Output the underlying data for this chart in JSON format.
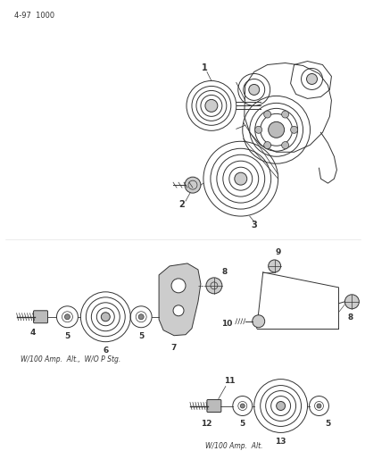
{
  "page_id": "4-97  1000",
  "background_color": "#ffffff",
  "line_color": "#333333",
  "figsize": [
    4.1,
    5.33
  ],
  "dpi": 100,
  "label1": "W/100 Amp.  Alt.,  W/O P Stg.",
  "label2": "W/100 Amp.  Alt."
}
